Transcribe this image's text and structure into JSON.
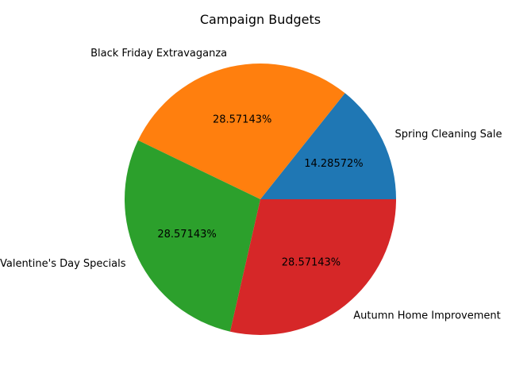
{
  "chart_data": {
    "type": "pie",
    "title": "Campaign Budgets",
    "slices": [
      {
        "label": "Spring Cleaning Sale",
        "value": 14.28572,
        "pct_label": "14.28572%",
        "color": "#1f77b4"
      },
      {
        "label": "Black Friday Extravaganza",
        "value": 28.57143,
        "pct_label": "28.57143%",
        "color": "#ff7f0e"
      },
      {
        "label": "Valentine's Day Specials",
        "value": 28.57143,
        "pct_label": "28.57143%",
        "color": "#2ca02c"
      },
      {
        "label": "Autumn Home Improvement",
        "value": 28.57143,
        "pct_label": "28.57143%",
        "color": "#d62728"
      }
    ],
    "start_angle_deg": 0,
    "direction": "counterclockwise",
    "legend": false
  }
}
